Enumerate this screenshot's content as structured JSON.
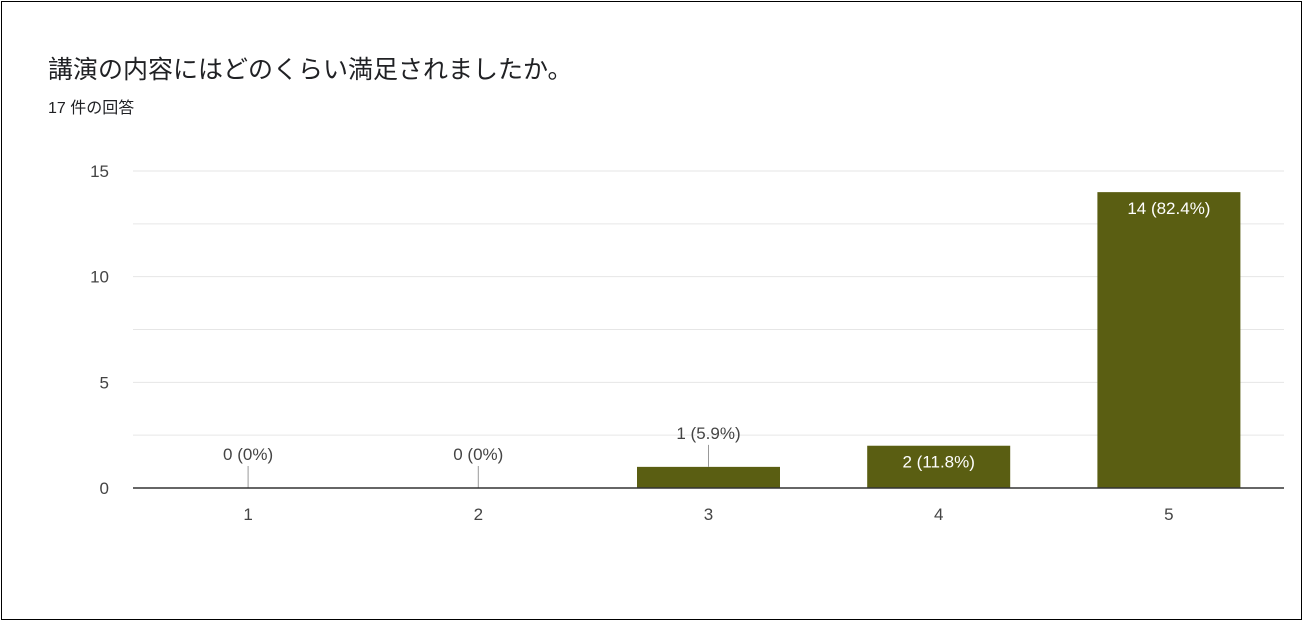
{
  "question": {
    "title": "講演の内容にはどのくらい満足されましたか。",
    "response_count": "17 件の回答"
  },
  "colors": {
    "bar": "#5a5e12",
    "gridline": "#e6e6e6",
    "baseline": "#333333",
    "text": "#444444",
    "leader": "#999999"
  },
  "chart_data": {
    "type": "bar",
    "title": "講演の内容にはどのくらい満足されましたか。",
    "xlabel": "",
    "ylabel": "",
    "categories": [
      "1",
      "2",
      "3",
      "4",
      "5"
    ],
    "values": [
      0,
      0,
      1,
      2,
      14
    ],
    "data_labels": [
      "0 (0%)",
      "0 (0%)",
      "1 (5.9%)",
      "2 (11.8%)",
      "14 (82.4%)"
    ],
    "ylim": [
      0,
      15
    ],
    "yticks": [
      0,
      5,
      10,
      15
    ],
    "grid": true,
    "legend": "none"
  }
}
